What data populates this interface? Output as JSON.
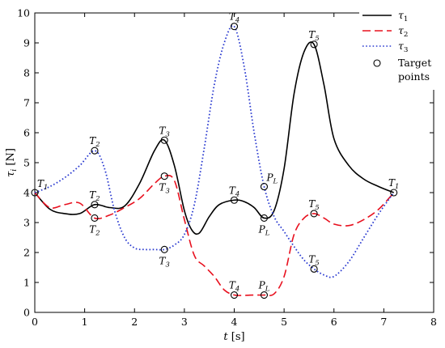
{
  "chart_data": {
    "type": "line",
    "xlabel": "t [s]",
    "xlabel_symbol": "t",
    "xlabel_unit": "[s]",
    "ylabel": "τi [N]",
    "ylabel_symbol": "τ",
    "ylabel_sub": "i",
    "ylabel_unit": "[N]",
    "xlim": [
      0,
      8
    ],
    "ylim": [
      0,
      10
    ],
    "xticks": [
      "0",
      "1",
      "2",
      "3",
      "4",
      "5",
      "6",
      "7",
      "8"
    ],
    "yticks": [
      "0",
      "1",
      "2",
      "3",
      "4",
      "5",
      "6",
      "7",
      "8",
      "9",
      "10"
    ],
    "grid": false,
    "legend_position": "top-right",
    "series": [
      {
        "name": "τ1",
        "name_base": "τ",
        "name_sub": "1",
        "color": "#000000",
        "style": "solid",
        "x": [
          0,
          0.3,
          0.6,
          0.9,
          1.2,
          1.5,
          1.8,
          2.1,
          2.4,
          2.6,
          2.8,
          3.0,
          3.15,
          3.3,
          3.5,
          3.7,
          4.0,
          4.2,
          4.4,
          4.6,
          4.8,
          5.0,
          5.2,
          5.4,
          5.6,
          5.8,
          6.0,
          6.3,
          6.6,
          6.9,
          7.2
        ],
        "y": [
          4.0,
          3.45,
          3.3,
          3.3,
          3.6,
          3.5,
          3.55,
          4.3,
          5.4,
          5.75,
          4.9,
          3.4,
          2.75,
          2.65,
          3.2,
          3.6,
          3.75,
          3.7,
          3.5,
          3.15,
          3.4,
          4.8,
          7.3,
          8.7,
          8.95,
          7.6,
          5.8,
          4.9,
          4.45,
          4.2,
          4.0
        ]
      },
      {
        "name": "τ2",
        "name_base": "τ",
        "name_sub": "2",
        "color": "#e8101e",
        "style": "dashed",
        "x": [
          0,
          0.3,
          0.6,
          0.9,
          1.2,
          1.5,
          1.8,
          2.1,
          2.4,
          2.6,
          2.8,
          3.0,
          3.2,
          3.4,
          3.6,
          3.8,
          4.0,
          4.2,
          4.4,
          4.6,
          4.8,
          5.0,
          5.2,
          5.4,
          5.6,
          5.8,
          6.0,
          6.3,
          6.6,
          6.9,
          7.2
        ],
        "y": [
          4.0,
          3.5,
          3.6,
          3.65,
          3.15,
          3.25,
          3.5,
          3.8,
          4.3,
          4.55,
          4.4,
          3.1,
          1.9,
          1.55,
          1.2,
          0.75,
          0.58,
          0.57,
          0.58,
          0.58,
          0.62,
          1.2,
          2.6,
          3.15,
          3.3,
          3.15,
          2.95,
          2.9,
          3.1,
          3.45,
          4.0
        ]
      },
      {
        "name": "τ3",
        "name_base": "τ",
        "name_sub": "3",
        "color": "#2a3ad0",
        "style": "dotted",
        "x": [
          0,
          0.3,
          0.6,
          0.9,
          1.2,
          1.4,
          1.6,
          1.8,
          2.0,
          2.2,
          2.4,
          2.6,
          2.8,
          3.0,
          3.2,
          3.4,
          3.6,
          3.8,
          4.0,
          4.2,
          4.4,
          4.6,
          4.8,
          5.0,
          5.2,
          5.4,
          5.6,
          5.8,
          6.0,
          6.3,
          6.6,
          6.9,
          7.2
        ],
        "y": [
          4.0,
          4.2,
          4.5,
          4.9,
          5.4,
          4.8,
          3.4,
          2.5,
          2.15,
          2.1,
          2.1,
          2.1,
          2.25,
          2.6,
          3.6,
          5.5,
          7.6,
          9.0,
          9.55,
          8.2,
          6.0,
          4.2,
          3.2,
          2.7,
          2.2,
          1.75,
          1.45,
          1.25,
          1.2,
          1.7,
          2.5,
          3.3,
          4.0
        ]
      }
    ],
    "legend": {
      "target_label_line1": "Target",
      "target_label_line2": "points"
    },
    "target_points": [
      {
        "x": 0,
        "y": 4.0
      },
      {
        "x": 1.2,
        "y": 3.6
      },
      {
        "x": 2.6,
        "y": 5.75
      },
      {
        "x": 4.0,
        "y": 3.75
      },
      {
        "x": 4.6,
        "y": 3.15
      },
      {
        "x": 5.6,
        "y": 8.95
      },
      {
        "x": 7.2,
        "y": 4.0
      },
      {
        "x": 1.2,
        "y": 3.15
      },
      {
        "x": 2.6,
        "y": 4.55
      },
      {
        "x": 4.0,
        "y": 0.58
      },
      {
        "x": 4.6,
        "y": 0.58
      },
      {
        "x": 5.6,
        "y": 3.3
      },
      {
        "x": 1.2,
        "y": 5.4
      },
      {
        "x": 2.6,
        "y": 2.1
      },
      {
        "x": 4.0,
        "y": 9.55
      },
      {
        "x": 4.6,
        "y": 4.2
      },
      {
        "x": 5.6,
        "y": 1.45
      }
    ],
    "annotations": [
      {
        "base": "T",
        "sub": "1",
        "x": 0.0,
        "y": 4.0,
        "pos": "above-right"
      },
      {
        "base": "T",
        "sub": "2",
        "x": 1.2,
        "y": 5.4,
        "pos": "above"
      },
      {
        "base": "T",
        "sub": "2",
        "x": 1.2,
        "y": 3.6,
        "pos": "above"
      },
      {
        "base": "T",
        "sub": "2",
        "x": 1.2,
        "y": 3.15,
        "pos": "below"
      },
      {
        "base": "T",
        "sub": "3",
        "x": 2.6,
        "y": 5.75,
        "pos": "above"
      },
      {
        "base": "T",
        "sub": "3",
        "x": 2.6,
        "y": 4.55,
        "pos": "below"
      },
      {
        "base": "T",
        "sub": "3",
        "x": 2.6,
        "y": 2.1,
        "pos": "below"
      },
      {
        "base": "T",
        "sub": "4",
        "x": 4.0,
        "y": 9.55,
        "pos": "above"
      },
      {
        "base": "T",
        "sub": "4",
        "x": 4.0,
        "y": 3.75,
        "pos": "above"
      },
      {
        "base": "T",
        "sub": "4",
        "x": 4.0,
        "y": 0.58,
        "pos": "above"
      },
      {
        "base": "P",
        "sub": "L",
        "x": 4.6,
        "y": 4.2,
        "pos": "above-right"
      },
      {
        "base": "P",
        "sub": "L",
        "x": 4.6,
        "y": 3.15,
        "pos": "below"
      },
      {
        "base": "P",
        "sub": "L",
        "x": 4.6,
        "y": 0.58,
        "pos": "above"
      },
      {
        "base": "T",
        "sub": "5",
        "x": 5.6,
        "y": 8.95,
        "pos": "above"
      },
      {
        "base": "T",
        "sub": "5",
        "x": 5.6,
        "y": 3.3,
        "pos": "above"
      },
      {
        "base": "T",
        "sub": "5",
        "x": 5.6,
        "y": 1.45,
        "pos": "above"
      },
      {
        "base": "T",
        "sub": "1",
        "x": 7.2,
        "y": 4.0,
        "pos": "above"
      }
    ]
  }
}
